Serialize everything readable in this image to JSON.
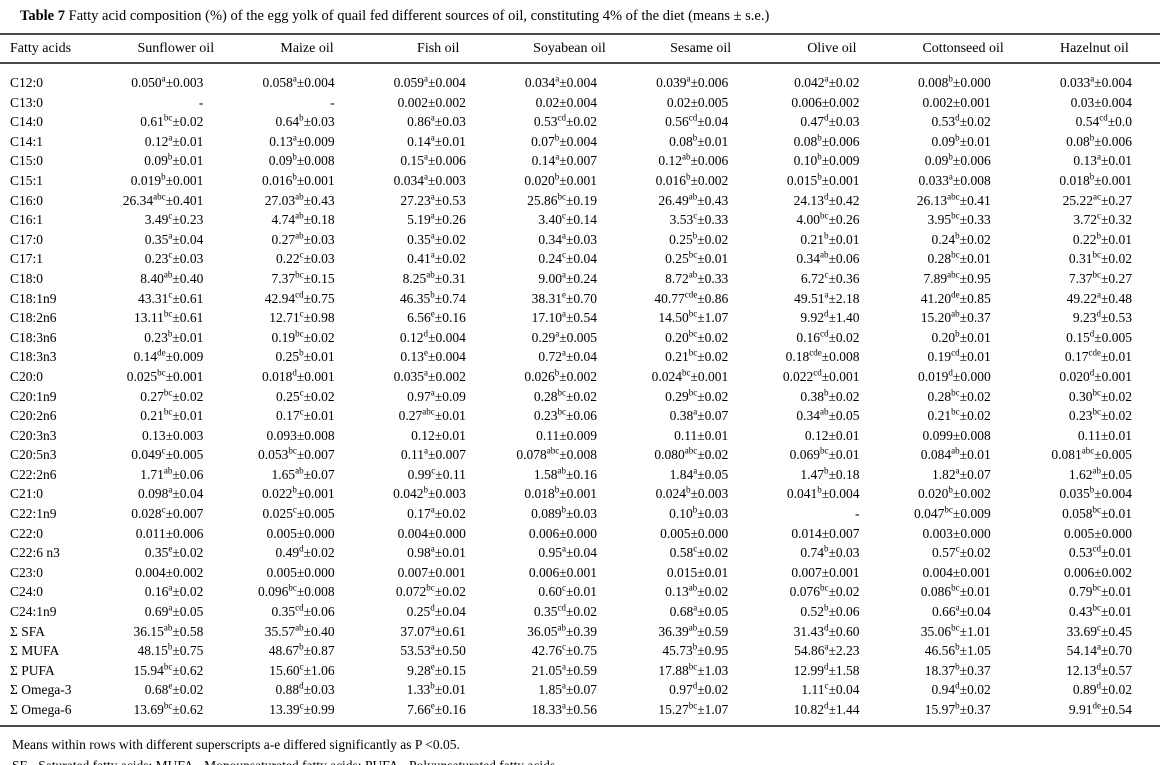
{
  "title": {
    "label": "Table 7",
    "text": " Fatty acid composition (%) of the egg yolk of quail fed different sources of oil, constituting 4% of the diet (means ± s.e.)"
  },
  "table": {
    "columns": [
      "Fatty acids",
      "Sunflower oil",
      "Maize oil",
      "Fish oil",
      "Soyabean oil",
      "Sesame oil",
      "Olive oil",
      "Cottonseed oil",
      "Hazelnut oil"
    ],
    "rows": [
      {
        "label": "C12:0",
        "cells": [
          "0.050^{a}±0.003",
          "0.058^{a}±0.004",
          "0.059^{a}±0.004",
          "0.034^{a}±0.004",
          "0.039^{a}±0.006",
          "0.042^{a}±0.02",
          "0.008^{b}±0.000",
          "0.033^{a}±0.004"
        ]
      },
      {
        "label": "C13:0",
        "cells": [
          "-",
          "-",
          "0.002±0.002",
          "0.02±0.004",
          "0.02±0.005",
          "0.006±0.002",
          "0.002±0.001",
          "0.03±0.004"
        ]
      },
      {
        "label": "C14:0",
        "cells": [
          "0.61^{bc}±0.02",
          "0.64^{b}±0.03",
          "0.86^{a}±0.03",
          "0.53^{cd}±0.02",
          "0.56^{cd}±0.04",
          "0.47^{d}±0.03",
          "0.53^{d}±0.02",
          "0.54^{cd}±0.0"
        ]
      },
      {
        "label": "C14:1",
        "cells": [
          "0.12^{a}±0.01",
          "0.13^{a}±0.009",
          "0.14^{a}±0.01",
          "0.07^{b}±0.004",
          "0.08^{b}±0.01",
          "0.08^{b}±0.006",
          "0.09^{b}±0.01",
          "0.08^{b}±0.006"
        ]
      },
      {
        "label": "C15:0",
        "cells": [
          "0.09^{b}±0.01",
          "0.09^{b}±0.008",
          "0.15^{a}±0.006",
          "0.14^{a}±0.007",
          "0.12^{ab}±0.006",
          "0.10^{b}±0.009",
          "0.09^{b}±0.006",
          "0.13^{a}±0.01"
        ]
      },
      {
        "label": "C15:1",
        "cells": [
          "0.019^{b}±0.001",
          "0.016^{b}±0.001",
          "0.034^{a}±0.003",
          "0.020^{b}±0.001",
          "0.016^{b}±0.002",
          "0.015^{b}±0.001",
          "0.033^{a}±0.008",
          "0.018^{b}±0.001"
        ]
      },
      {
        "label": "C16:0",
        "cells": [
          "26.34^{abc}±0.401",
          "27.03^{ab}±0.43",
          "27.23^{a}±0.53",
          "25.86^{bc}±0.19",
          "26.49^{ab}±0.43",
          "24.13^{d}±0.42",
          "26.13^{abc}±0.41",
          "25.22^{ac}±0.27"
        ]
      },
      {
        "label": "C16:1",
        "cells": [
          "3.49^{c}±0.23",
          "4.74^{ab}±0.18",
          "5.19^{a}±0.26",
          "3.40^{c}±0.14",
          "3.53^{c}±0.33",
          "4.00^{bc}±0.26",
          "3.95^{bc}±0.33",
          "3.72^{c}±0.32"
        ]
      },
      {
        "label": "C17:0",
        "cells": [
          "0.35^{a}±0.04",
          "0.27^{ab}±0.03",
          "0.35^{a}±0.02",
          "0.34^{a}±0.03",
          "0.25^{b}±0.02",
          "0.21^{b}±0.01",
          "0.24^{b}±0.02",
          "0.22^{b}±0.01"
        ]
      },
      {
        "label": "C17:1",
        "cells": [
          "0.23^{c}±0.03",
          "0.22^{c}±0.03",
          "0.41^{a}±0.02",
          "0.24^{c}±0.04",
          "0.25^{bc}±0.01",
          "0.34^{ab}±0.06",
          "0.28^{bc}±0.01",
          "0.31^{bc}±0.02"
        ]
      },
      {
        "label": "C18:0",
        "cells": [
          "8.40^{ab}±0.40",
          "7.37^{bc}±0.15",
          "8.25^{ab}±0.31",
          "9.00^{a}±0.24",
          "8.72^{ab}±0.33",
          "6.72^{c}±0.36",
          "7.89^{abc}±0.95",
          "7.37^{bc}±0.27"
        ]
      },
      {
        "label": "C18:1n9",
        "cells": [
          "43.31^{c}±0.61",
          "42.94^{cd}±0.75",
          "46.35^{b}±0.74",
          "38.31^{e}±0.70",
          "40.77^{cde}±0.86",
          "49.51^{a}±2.18",
          "41.20^{de}±0.85",
          "49.22^{a}±0.48"
        ]
      },
      {
        "label": "C18:2n6",
        "cells": [
          "13.11^{bc}±0.61",
          "12.71^{c}±0.98",
          "6.56^{e}±0.16",
          "17.10^{a}±0.54",
          "14.50^{bc}±1.07",
          "9.92^{d}±1.40",
          "15.20^{ab}±0.37",
          "9.23^{d}±0.53"
        ]
      },
      {
        "label": "C18:3n6",
        "cells": [
          "0.23^{b}±0.01",
          "0.19^{bc}±0.02",
          "0.12^{d}±0.004",
          "0.29^{a}±0.005",
          "0.20^{bc}±0.02",
          "0.16^{cd}±0.02",
          "0.20^{b}±0.01",
          "0.15^{d}±0.005"
        ]
      },
      {
        "label": "C18:3n3",
        "cells": [
          "0.14^{de}±0.009",
          "0.25^{b}±0.01",
          "0.13^{e}±0.004",
          "0.72^{a}±0.04",
          "0.21^{bc}±0.02",
          "0.18^{cde}±0.008",
          "0.19^{cd}±0.01",
          "0.17^{cde}±0.01"
        ]
      },
      {
        "label": "C20:0",
        "cells": [
          "0.025^{bc}±0.001",
          "0.018^{d}±0.001",
          "0.035^{a}±0.002",
          "0.026^{b}±0.002",
          "0.024^{bc}±0.001",
          "0.022^{cd}±0.001",
          "0.019^{d}±0.000",
          "0.020^{d}±0.001"
        ]
      },
      {
        "label": "C20:1n9",
        "cells": [
          "0.27^{bc}±0.02",
          "0.25^{c}±0.02",
          "0.97^{a}±0.09",
          "0.28^{bc}±0.02",
          "0.29^{bc}±0.02",
          "0.38^{b}±0.02",
          "0.28^{bc}±0.02",
          "0.30^{bc}±0.02"
        ]
      },
      {
        "label": "C20:2n6",
        "cells": [
          "0.21^{bc}±0.01",
          "0.17^{c}±0.01",
          "0.27^{abc}±0.01",
          "0.23^{bc}±0.06",
          "0.38^{a}±0.07",
          "0.34^{ab}±0.05",
          "0.21^{bc}±0.02",
          "0.23^{bc}±0.02"
        ]
      },
      {
        "label": "C20:3n3",
        "cells": [
          "0.13±0.003",
          "0.093±0.008",
          "0.12±0.01",
          "0.11±0.009",
          "0.11±0.01",
          "0.12±0.01",
          "0.099±0.008",
          "0.11±0.01"
        ]
      },
      {
        "label": "C20:5n3",
        "cells": [
          "0.049^{c}±0.005",
          "0.053^{bc}±0.007",
          "0.11^{a}±0.007",
          "0.078^{abc}±0.008",
          "0.080^{abc}±0.02",
          "0.069^{bc}±0.01",
          "0.084^{ab}±0.01",
          "0.081^{abc}±0.005"
        ]
      },
      {
        "label": "C22:2n6",
        "cells": [
          "1.71^{ab}±0.06",
          "1.65^{ab}±0.07",
          "0.99^{c}±0.11",
          "1.58^{ab}±0.16",
          "1.84^{a}±0.05",
          "1.47^{b}±0.18",
          "1.82^{a}±0.07",
          "1.62^{ab}±0.05"
        ]
      },
      {
        "label": "C21:0",
        "cells": [
          "0.098^{a}±0.04",
          "0.022^{b}±0.001",
          "0.042^{b}±0.003",
          "0.018^{b}±0.001",
          "0.024^{b}±0.003",
          "0.041^{b}±0.004",
          "0.020^{b}±0.002",
          "0.035^{b}±0.004"
        ]
      },
      {
        "label": "C22:1n9",
        "cells": [
          "0.028^{c}±0.007",
          "0.025^{c}±0.005",
          "0.17^{a}±0.02",
          "0.089^{b}±0.03",
          "0.10^{b}±0.03",
          "-",
          "0.047^{bc}±0.009",
          "0.058^{bc}±0.01"
        ]
      },
      {
        "label": "C22:0",
        "cells": [
          "0.011±0.006",
          "0.005±0.000",
          "0.004±0.000",
          "0.006±0.000",
          "0.005±0.000",
          "0.014±0.007",
          "0.003±0.000",
          "0.005±0.000"
        ]
      },
      {
        "label": "C22:6 n3",
        "cells": [
          "0.35^{e}±0.02",
          "0.49^{d}±0.02",
          "0.98^{a}±0.01",
          "0.95^{a}±0.04",
          "0.58^{c}±0.02",
          "0.74^{b}±0.03",
          "0.57^{c}±0.02",
          "0.53^{cd}±0.01"
        ]
      },
      {
        "label": "C23:0",
        "cells": [
          "0.004±0.002",
          "0.005±0.000",
          "0.007±0.001",
          "0.006±0.001",
          "0.015±0.01",
          "0.007±0.001",
          "0.004±0.001",
          "0.006±0.002"
        ]
      },
      {
        "label": "C24:0",
        "cells": [
          "0.16^{a}±0.02",
          "0.096^{bc}±0.008",
          "0.072^{bc}±0.02",
          "0.60^{c}±0.01",
          "0.13^{ab}±0.02",
          "0.076^{bc}±0.02",
          "0.086^{bc}±0.01",
          "0.79^{bc}±0.01"
        ]
      },
      {
        "label": "C24:1n9",
        "cells": [
          "0.69^{a}±0.05",
          "0.35^{cd}±0.06",
          "0.25^{d}±0.04",
          "0.35^{cd}±0.02",
          "0.68^{a}±0.05",
          "0.52^{b}±0.06",
          "0.66^{a}±0.04",
          "0.43^{bc}±0.01"
        ]
      },
      {
        "label": "Σ SFA",
        "cells": [
          "36.15^{ab}±0.58",
          "35.57^{ab}±0.40",
          "37.07^{a}±0.61",
          "36.05^{ab}±0.39",
          "36.39^{ab}±0.59",
          "31.43^{d}±0.60",
          "35.06^{bc}±1.01",
          "33.69^{c}±0.45"
        ]
      },
      {
        "label": "Σ MUFA",
        "cells": [
          "48.15^{b}±0.75",
          "48.67^{b}±0.87",
          "53.53^{a}±0.50",
          "42.76^{c}±0.75",
          "45.73^{b}±0.95",
          "54.86^{a}±2.23",
          "46.56^{b}±1.05",
          "54.14^{a}±0.70"
        ]
      },
      {
        "label": "Σ PUFA",
        "cells": [
          "15.94^{bc}±0.62",
          "15.60^{c}±1.06",
          "9.28^{e}±0.15",
          "21.05^{a}±0.59",
          "17.88^{bc}±1.03",
          "12.99^{d}±1.58",
          "18.37^{b}±0.37",
          "12.13^{d}±0.57"
        ]
      },
      {
        "label": "Σ Omega-3",
        "cells": [
          "0.68^{e}±0.02",
          "0.88^{d}±0.03",
          "1.33^{b}±0.01",
          "1.85^{a}±0.07",
          "0.97^{d}±0.02",
          "1.11^{c}±0.04",
          "0.94^{d}±0.02",
          "0.89^{d}±0.02"
        ]
      },
      {
        "label": "Σ Omega-6",
        "cells": [
          "13.69^{bc}±0.62",
          "13.39^{c}±0.99",
          "7.66^{e}±0.16",
          "18.33^{a}±0.56",
          "15.27^{bc}±1.07",
          "10.82^{d}±1.44",
          "15.97^{b}±0.37",
          "9.91^{de}±0.54"
        ]
      }
    ]
  },
  "footnotes": [
    "Means within rows with different superscripts a-e differed significantly as P <0.05.",
    "SF - Saturated fatty acids; MUFA - Monounsaturated fatty acids; PUFA - Polyunsaturated fatty acids."
  ]
}
